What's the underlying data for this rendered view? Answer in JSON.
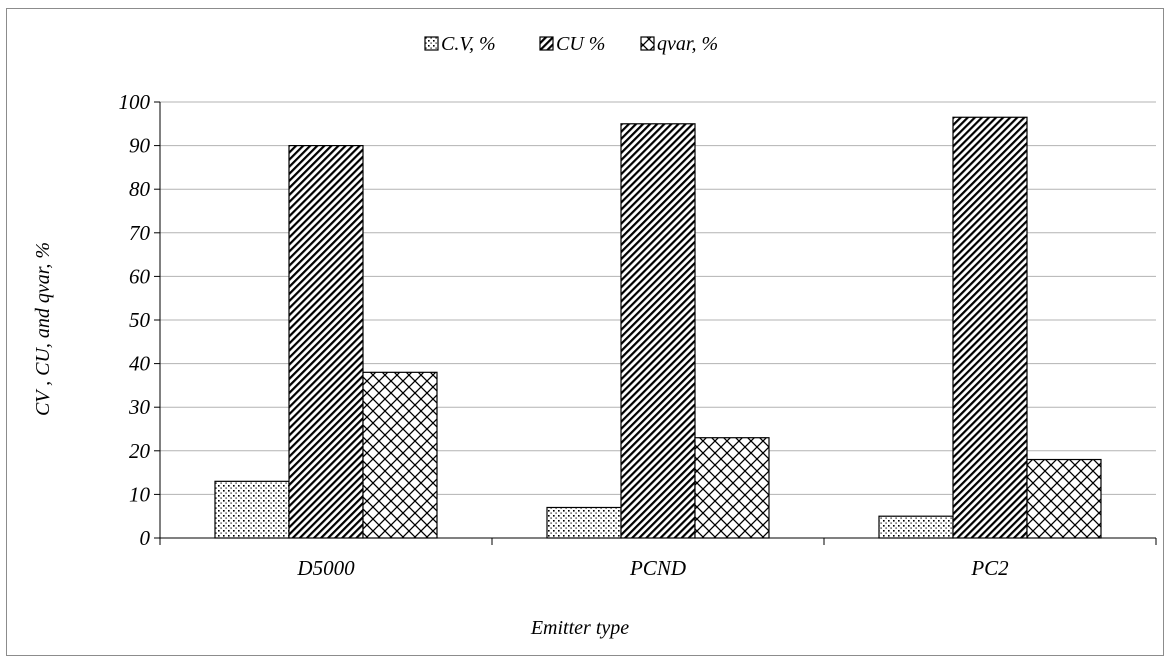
{
  "chart_data": {
    "type": "bar",
    "categories": [
      "D5000",
      "PCND",
      "PC2"
    ],
    "series": [
      {
        "name": "C.V, %",
        "values": [
          13,
          7,
          5
        ],
        "pattern": "dots"
      },
      {
        "name": "CU %",
        "values": [
          90,
          95,
          96.5
        ],
        "pattern": "diagonal"
      },
      {
        "name": "qvar, %",
        "values": [
          38,
          23,
          18
        ],
        "pattern": "crosshatch"
      }
    ],
    "xlabel": "Emitter type",
    "ylabel": "CV , CU, and qvar, %",
    "ylim": [
      0,
      100
    ],
    "yticks": [
      0,
      10,
      20,
      30,
      40,
      50,
      60,
      70,
      80,
      90,
      100
    ],
    "grid": true,
    "legend": "top-center"
  }
}
